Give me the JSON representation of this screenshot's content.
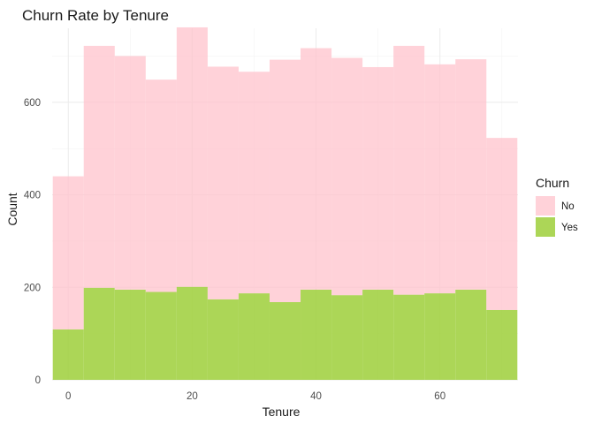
{
  "chart_data": {
    "type": "bar",
    "subtype": "stacked-histogram",
    "title": "Churn Rate by Tenure",
    "xlabel": "Tenure",
    "ylabel": "Count",
    "xlim": [
      -2.6,
      72.6
    ],
    "ylim": [
      0,
      760
    ],
    "x_ticks": [
      0,
      20,
      40,
      60
    ],
    "y_ticks": [
      0,
      200,
      400,
      600
    ],
    "bin_width": 5,
    "bins": [
      [
        -2.5,
        2.5
      ],
      [
        2.5,
        7.5
      ],
      [
        7.5,
        12.5
      ],
      [
        12.5,
        17.5
      ],
      [
        17.5,
        22.5
      ],
      [
        22.5,
        27.5
      ],
      [
        27.5,
        32.5
      ],
      [
        32.5,
        37.5
      ],
      [
        37.5,
        42.5
      ],
      [
        42.5,
        47.5
      ],
      [
        47.5,
        52.5
      ],
      [
        52.5,
        57.5
      ],
      [
        57.5,
        62.5
      ],
      [
        62.5,
        67.5
      ],
      [
        67.5,
        72.5
      ]
    ],
    "series": [
      {
        "name": "No",
        "color": "#ffc0cb",
        "values": [
          331,
          523,
          505,
          459,
          561,
          503,
          479,
          524,
          522,
          513,
          481,
          538,
          495,
          498,
          372
        ]
      },
      {
        "name": "Yes",
        "color": "#9acd32",
        "values": [
          109,
          199,
          195,
          190,
          201,
          174,
          187,
          168,
          195,
          183,
          195,
          184,
          187,
          195,
          151
        ]
      }
    ],
    "legend": {
      "title": "Churn",
      "position": "right",
      "items": [
        "No",
        "Yes"
      ]
    },
    "grid": true
  }
}
